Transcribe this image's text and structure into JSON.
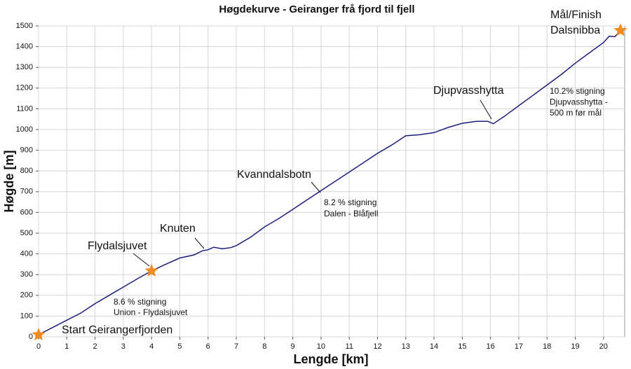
{
  "chart_data": {
    "type": "line",
    "title": "Høgdekurve - Geiranger frå fjord til fjell",
    "x_label": "Lengde [km]",
    "y_label": "Høgde [m]",
    "x": [
      0,
      0.5,
      1,
      1.5,
      2,
      2.5,
      3,
      3.5,
      4,
      4.5,
      5,
      5.5,
      5.8,
      6,
      6.2,
      6.5,
      6.8,
      7,
      7.5,
      8,
      8.5,
      9,
      9.5,
      10,
      10.5,
      11,
      11.5,
      12,
      12.5,
      13,
      13.5,
      14,
      14.5,
      15,
      15.5,
      15.9,
      16.1,
      16.5,
      17,
      17.5,
      18,
      18.5,
      19,
      19.5,
      20,
      20.2,
      20.4,
      20.6
    ],
    "values": [
      10,
      45,
      80,
      115,
      160,
      200,
      240,
      280,
      318,
      350,
      380,
      395,
      415,
      420,
      432,
      425,
      430,
      440,
      480,
      530,
      570,
      615,
      660,
      705,
      750,
      795,
      840,
      885,
      925,
      970,
      975,
      985,
      1010,
      1030,
      1040,
      1040,
      1028,
      1065,
      1115,
      1165,
      1215,
      1265,
      1320,
      1370,
      1420,
      1450,
      1448,
      1478
    ],
    "color": "#1a1f7a",
    "markers": {
      "x": [
        0,
        4,
        20.6
      ],
      "values": [
        10,
        318,
        1478
      ],
      "color": "#f08a24"
    },
    "xlim": [
      0,
      20.75
    ],
    "ylim": [
      0,
      1500
    ],
    "xticks": [
      0,
      1,
      2,
      3,
      4,
      5,
      6,
      7,
      8,
      9,
      10,
      11,
      12,
      13,
      14,
      15,
      16,
      17,
      18,
      19,
      20
    ],
    "yticks": [
      0,
      100,
      200,
      300,
      400,
      500,
      600,
      700,
      800,
      900,
      1000,
      1100,
      1200,
      1300,
      1400,
      1500
    ],
    "grid": true,
    "annotations": [
      [
        "Start Geirangerfjorden"
      ],
      [
        "Flydalsjuvet"
      ],
      [
        "Knuten"
      ],
      [
        "Kvanndalsbotn"
      ],
      [
        "8.2 % stigning",
        "Dalen - Blåfjell"
      ],
      [
        "8.6 % stigning",
        "Union - Flydalsjuvet"
      ],
      [
        "Djupvasshytta"
      ],
      [
        "10.2% stigning",
        "Djupvasshytta -",
        "500 m før mål"
      ],
      [
        "Mål/Finish",
        "Dalsnibba"
      ]
    ]
  }
}
